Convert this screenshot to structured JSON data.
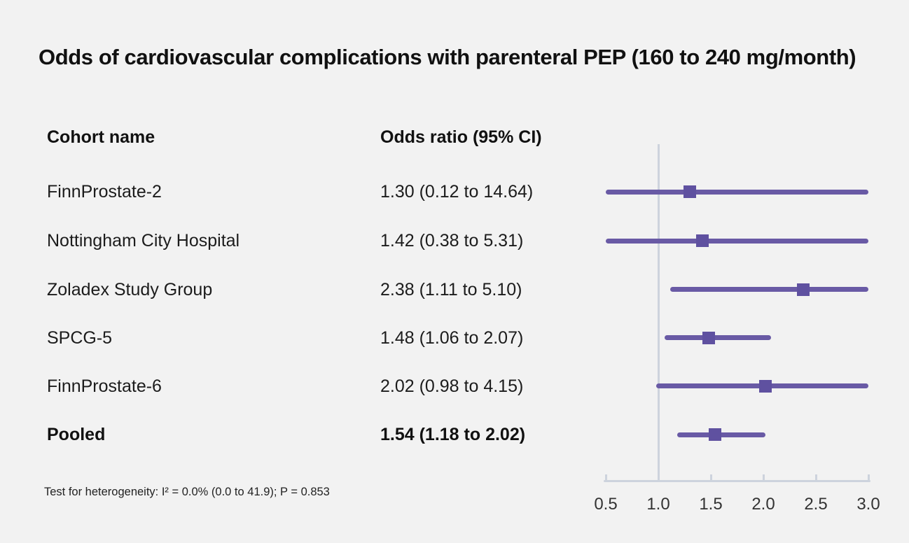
{
  "title": "Odds of cardiovascular complications with parenteral PEP (160 to 240 mg/month)",
  "table": {
    "col1_header": "Cohort name",
    "col2_header": "Odds ratio (95% CI)"
  },
  "rows": [
    {
      "label": "FinnProstate-2",
      "or": "1.30 (0.12 to 14.64)"
    },
    {
      "label": "Nottingham City Hospital",
      "or": "1.42 (0.38 to 5.31)"
    },
    {
      "label": "Zoladex Study Group",
      "or": "2.38 (1.11 to 5.10)"
    },
    {
      "label": "SPCG-5",
      "or": "1.48 (1.06 to 2.07)"
    },
    {
      "label": "FinnProstate-6",
      "or": "2.02 (0.98 to 4.15)"
    },
    {
      "label": "Pooled",
      "or": "1.54 (1.18 to 2.02)"
    }
  ],
  "footnote": "Test for heterogeneity: I² = 0.0% (0.0 to 41.9); P = 0.853",
  "colors": {
    "background": "#f2f2f2",
    "ci_line": "#695aa5",
    "marker": "#5f51a0",
    "axis": "#cdd3dd",
    "tick_text": "#333333"
  },
  "chart_data": {
    "type": "scatter",
    "variant": "forest-plot",
    "title": "Odds of cardiovascular complications with parenteral PEP (160 to 240 mg/month)",
    "xlabel": "",
    "ylabel": "",
    "xlim": [
      0.5,
      3.0
    ],
    "x_ticks": [
      0.5,
      1.0,
      1.5,
      2.0,
      2.5,
      3.0
    ],
    "x_tick_labels": [
      "0.5",
      "1.0",
      "1.5",
      "2.0",
      "2.5",
      "3.0"
    ],
    "reference_line_x": 1.0,
    "grid": false,
    "legend": "none",
    "studies": [
      {
        "name": "FinnProstate-2",
        "estimate": 1.3,
        "ci_lower": 0.12,
        "ci_upper": 14.64,
        "pooled": false
      },
      {
        "name": "Nottingham City Hospital",
        "estimate": 1.42,
        "ci_lower": 0.38,
        "ci_upper": 5.31,
        "pooled": false
      },
      {
        "name": "Zoladex Study Group",
        "estimate": 2.38,
        "ci_lower": 1.11,
        "ci_upper": 5.1,
        "pooled": false
      },
      {
        "name": "SPCG-5",
        "estimate": 1.48,
        "ci_lower": 1.06,
        "ci_upper": 2.07,
        "pooled": false
      },
      {
        "name": "FinnProstate-6",
        "estimate": 2.02,
        "ci_lower": 0.98,
        "ci_upper": 4.15,
        "pooled": false
      },
      {
        "name": "Pooled",
        "estimate": 1.54,
        "ci_lower": 1.18,
        "ci_upper": 2.02,
        "pooled": true
      }
    ],
    "heterogeneity": "Test for heterogeneity: I² = 0.0% (0.0 to 41.9); P = 0.853"
  }
}
